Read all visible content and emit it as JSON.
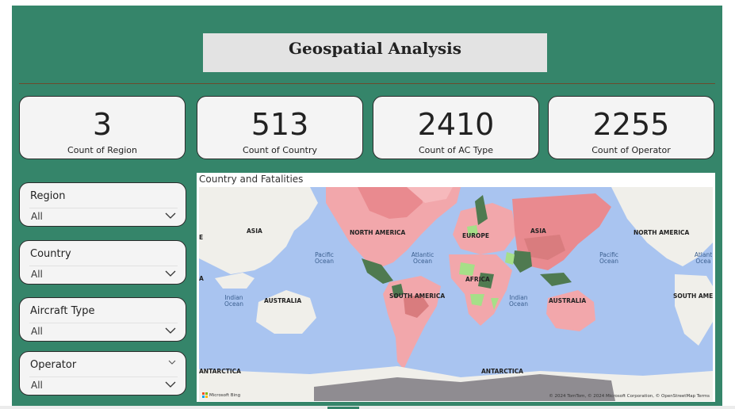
{
  "header": {
    "title": "Geospatial Analysis"
  },
  "kpis": [
    {
      "value": "3",
      "label": "Count of Region"
    },
    {
      "value": "513",
      "label": "Count of Country"
    },
    {
      "value": "2410",
      "label": "Count of AC Type"
    },
    {
      "value": "2255",
      "label": "Count of Operator"
    }
  ],
  "slicers": [
    {
      "title": "Region",
      "value": "All"
    },
    {
      "title": "Country",
      "value": "All"
    },
    {
      "title": "Aircraft Type",
      "value": "All"
    },
    {
      "title": "Operator",
      "value": "All"
    }
  ],
  "map": {
    "title": "Country and Fatalities",
    "labels": {
      "asia_left": "ASIA",
      "north_america_mid": "NORTH AMERICA",
      "europe": "EUROPE",
      "asia_mid": "ASIA",
      "north_america_right": "NORTH AMERICA",
      "pacific_left_1": "Pacific",
      "pacific_left_2": "Ocean",
      "atlantic_1": "Atlantic",
      "atlantic_2": "Ocean",
      "pacific_right_1": "Pacific",
      "pacific_right_2": "Ocean",
      "atlantic_right_1": "Atlant",
      "atlantic_right_2": "Ocea",
      "africa": "AFRICA",
      "indian_left_1": "Indian",
      "indian_left_2": "Ocean",
      "australia_left": "AUSTRALIA",
      "south_america": "SOUTH AMERICA",
      "indian_mid_1": "Indian",
      "indian_mid_2": "Ocean",
      "australia_mid": "AUSTRALIA",
      "south_america_right": "SOUTH AME",
      "antarctica_left": "ANTARCTICA",
      "antarctica_mid": "ANTARCTICA",
      "edge_e": "E",
      "edge_a": "A"
    },
    "credit": "© 2024 TomTom, © 2024 Microsoft Corporation, © OpenStreetMap  Terms",
    "logo_text": "Microsoft Bing"
  },
  "colors": {
    "canvas": "#35856a",
    "ocean": "#a9c4f0",
    "land": "#f0efea",
    "fatality_light": "#f2a7ab",
    "fatality_mid": "#e98a8f",
    "fatality_dark": "#d97c7e",
    "low_green": "#a6df88",
    "dark_green": "#4f7a50",
    "antarctica": "#8f8c91"
  }
}
